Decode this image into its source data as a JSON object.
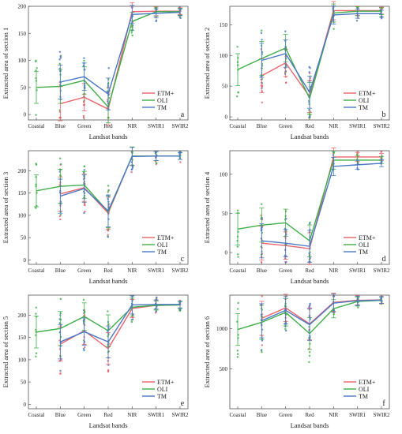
{
  "legend_labels": [
    "ETM+",
    "OLI",
    "TM"
  ],
  "colors": {
    "ETM+": "#e8636b",
    "OLI": "#3fae49",
    "TM": "#4a78c6"
  },
  "chart_data": [
    {
      "type": "line",
      "panel": "a",
      "xlabel": "Landsat bands",
      "ylabel": "Extracted area of section 1",
      "categories": [
        "Coastal",
        "Blue",
        "Green",
        "Red",
        "NIR",
        "SWIR1",
        "SWIR2"
      ],
      "ylim": [
        -10,
        200
      ],
      "yticks": [
        0,
        50,
        100,
        150,
        200
      ],
      "series": [
        {
          "name": "ETM+",
          "values": [
            null,
            20,
            32,
            10,
            190,
            191,
            191
          ]
        },
        {
          "name": "OLI",
          "values": [
            50,
            52,
            63,
            14,
            172,
            190,
            190
          ]
        },
        {
          "name": "TM",
          "values": [
            null,
            60,
            70,
            38,
            185,
            187,
            189
          ]
        }
      ]
    },
    {
      "type": "line",
      "panel": "b",
      "xlabel": "Landsat bands",
      "ylabel": "Extracted area of section 2",
      "categories": [
        "Coastal",
        "Blue",
        "Green",
        "Red",
        "NIR",
        "SWIR1",
        "SWIR2"
      ],
      "ylim": [
        -5,
        180
      ],
      "yticks": [
        0,
        50,
        100,
        150
      ],
      "series": [
        {
          "name": "ETM+",
          "values": [
            null,
            67,
            88,
            33,
            173,
            173,
            173
          ]
        },
        {
          "name": "OLI",
          "values": [
            77,
            95,
            112,
            30,
            169,
            172,
            172
          ]
        },
        {
          "name": "TM",
          "values": [
            null,
            92,
            103,
            40,
            166,
            168,
            168
          ]
        }
      ]
    },
    {
      "type": "line",
      "panel": "c",
      "xlabel": "Landsat bands",
      "ylabel": "Extracted area of section 3",
      "categories": [
        "Coastal",
        "Blue",
        "Green",
        "Red",
        "NIR",
        "SWIR1",
        "SWIR2"
      ],
      "ylim": [
        -10,
        245
      ],
      "yticks": [
        0,
        50,
        100,
        150,
        200
      ],
      "series": [
        {
          "name": "ETM+",
          "values": [
            null,
            148,
            162,
            105,
            233,
            233,
            233
          ]
        },
        {
          "name": "OLI",
          "values": [
            155,
            165,
            168,
            108,
            233,
            233,
            233
          ]
        },
        {
          "name": "TM",
          "values": [
            null,
            143,
            160,
            110,
            232,
            233,
            233
          ]
        }
      ]
    },
    {
      "type": "line",
      "panel": "d",
      "xlabel": "Landsat bands",
      "ylabel": "Extracted area of section 4",
      "categories": [
        "Coastal",
        "Blue",
        "Green",
        "Red",
        "NIR",
        "SWIR1",
        "SWIR2"
      ],
      "ylim": [
        -15,
        130
      ],
      "yticks": [
        0,
        50,
        100
      ],
      "series": [
        {
          "name": "ETM+",
          "values": [
            null,
            12,
            9,
            5,
            122,
            122,
            122
          ]
        },
        {
          "name": "OLI",
          "values": [
            30,
            35,
            38,
            15,
            118,
            118,
            118
          ]
        },
        {
          "name": "TM",
          "values": [
            null,
            15,
            12,
            8,
            110,
            112,
            114
          ]
        }
      ]
    },
    {
      "type": "line",
      "panel": "e",
      "xlabel": "Landsat bands",
      "ylabel": "Extracted area of section 5",
      "categories": [
        "Coastal",
        "Blue",
        "Green",
        "Red",
        "NIR",
        "SWIR1",
        "SWIR2"
      ],
      "ylim": [
        -10,
        245
      ],
      "yticks": [
        0,
        50,
        100,
        150,
        200
      ],
      "series": [
        {
          "name": "ETM+",
          "values": [
            null,
            135,
            165,
            125,
            215,
            222,
            223
          ]
        },
        {
          "name": "OLI",
          "values": [
            162,
            170,
            197,
            165,
            218,
            222,
            223
          ]
        },
        {
          "name": "TM",
          "values": [
            null,
            140,
            163,
            140,
            223,
            224,
            224
          ]
        }
      ]
    },
    {
      "type": "line",
      "panel": "f",
      "xlabel": "Landsat bands",
      "ylabel": "Extracted area of section 6",
      "categories": [
        "Coastal",
        "Blue",
        "Green",
        "Red",
        "NIR",
        "SWIR1",
        "SWIR2"
      ],
      "ylim": [
        0,
        1420
      ],
      "yticks": [
        500,
        1000
      ],
      "series": [
        {
          "name": "ETM+",
          "values": [
            null,
            1130,
            1260,
            1060,
            1330,
            1355,
            1360
          ]
        },
        {
          "name": "OLI",
          "values": [
            990,
            1080,
            1205,
            940,
            1250,
            1340,
            1355
          ]
        },
        {
          "name": "TM",
          "values": [
            null,
            1100,
            1230,
            1050,
            1320,
            1350,
            1358
          ]
        }
      ]
    }
  ]
}
